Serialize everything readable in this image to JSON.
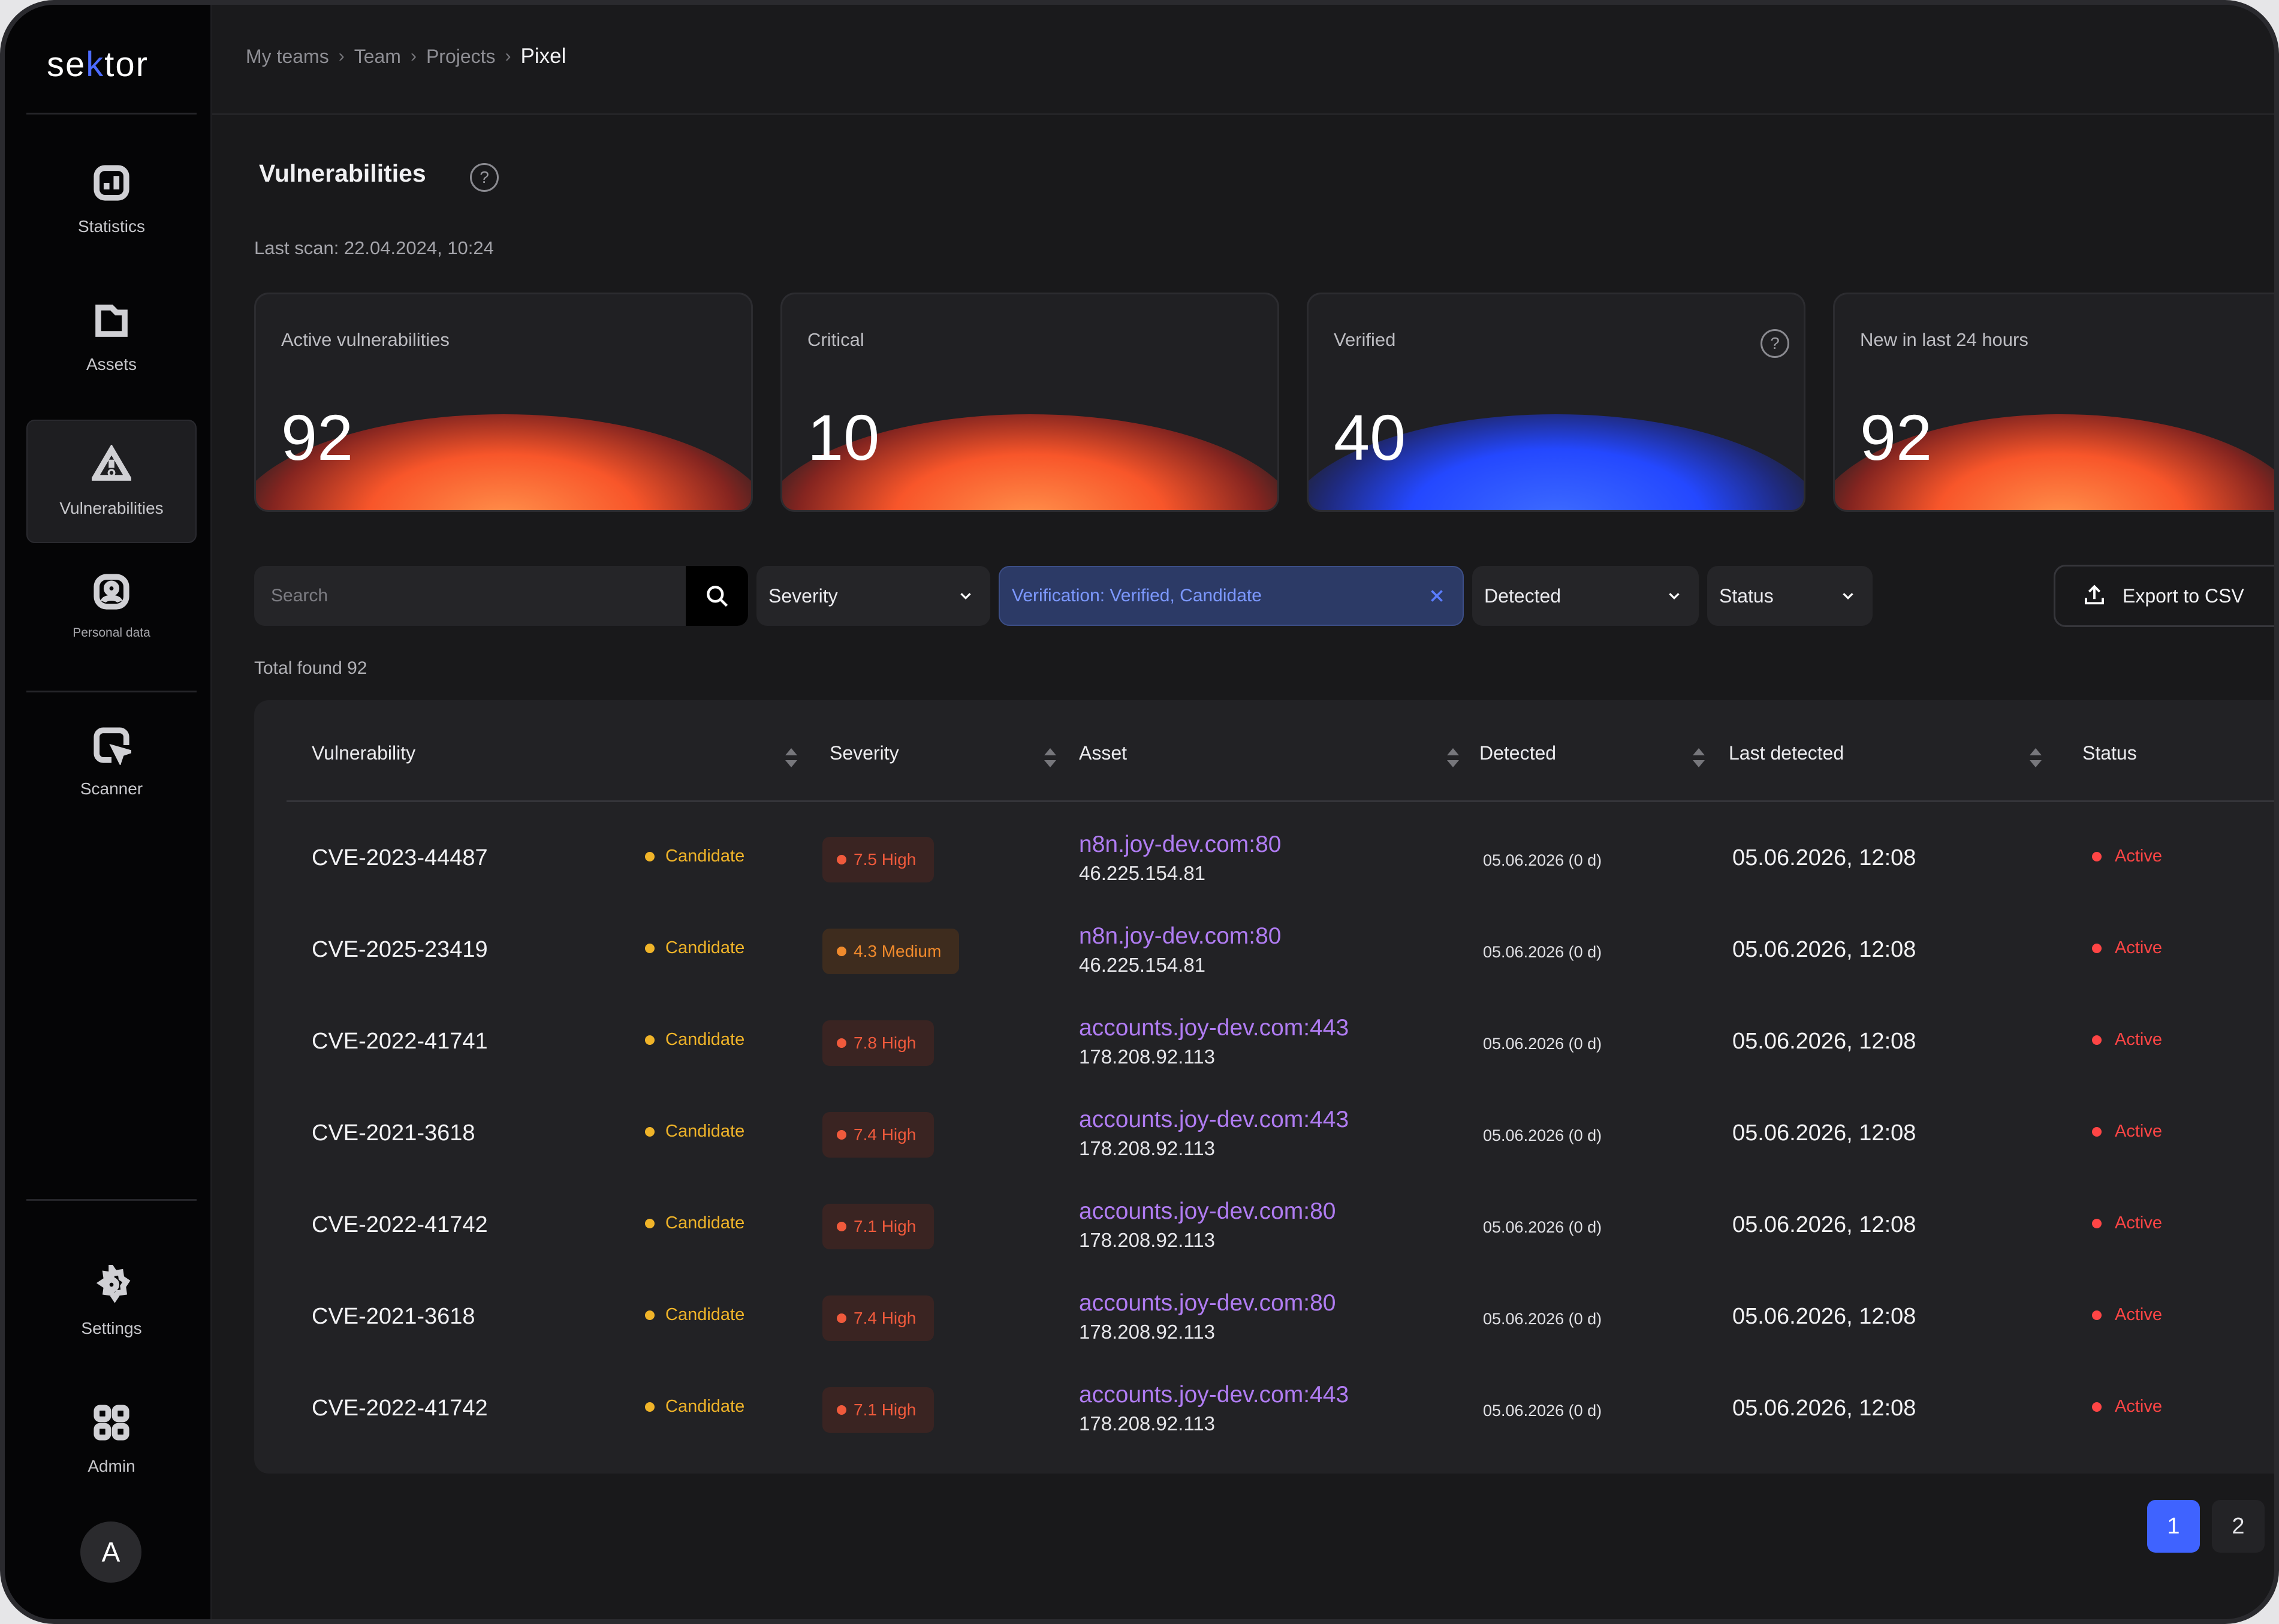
{
  "app": {
    "logo_text": "sektor"
  },
  "breadcrumbs": [
    "My teams",
    "Team",
    "Projects",
    "Pixel"
  ],
  "sidebar": {
    "items": [
      {
        "label": "Statistics",
        "icon": "bar-chart-icon"
      },
      {
        "label": "Assets",
        "icon": "folder-icon"
      },
      {
        "label": "Vulnerabilities",
        "icon": "warning-triangle-icon",
        "active": true
      },
      {
        "label": "Personal data",
        "icon": "user-badge-icon"
      },
      {
        "label": "Scanner",
        "icon": "scan-cursor-icon"
      }
    ],
    "bottom_items": [
      {
        "label": "Settings",
        "icon": "gear-icon"
      },
      {
        "label": "Admin",
        "icon": "grid-icon"
      }
    ],
    "avatar_initial": "A"
  },
  "page": {
    "title": "Vulnerabilities",
    "last_scan": "Last scan: 22.04.2024, 10:24"
  },
  "stats": [
    {
      "label": "Active vulnerabilities",
      "value": "92",
      "glow": "orange"
    },
    {
      "label": "Critical",
      "value": "10",
      "glow": "orange"
    },
    {
      "label": "Verified",
      "value": "40",
      "glow": "blue",
      "help": true
    },
    {
      "label": "New in last 24 hours",
      "value": "92",
      "glow": "orange"
    }
  ],
  "filters": {
    "search_placeholder": "Search",
    "severity": "Severity",
    "verification": "Verification: Verified, Candidate",
    "detected": "Detected",
    "status": "Status",
    "export": "Export to CSV"
  },
  "total_found": "Total found 92",
  "table": {
    "columns": [
      "Vulnerability",
      "Severity",
      "Asset",
      "Detected",
      "Last detected",
      "Status"
    ],
    "rows": [
      {
        "cve": "CVE-2023-44487",
        "verification": "Candidate",
        "severity": "7.5 High",
        "level": "high",
        "host": "n8n.joy-dev.com:80",
        "ip": "46.225.154.81",
        "detected": "05.06.2026 (0 d)",
        "last": "05.06.2026, 12:08",
        "status": "Active"
      },
      {
        "cve": "CVE-2025-23419",
        "verification": "Candidate",
        "severity": "4.3 Medium",
        "level": "medium",
        "host": "n8n.joy-dev.com:80",
        "ip": "46.225.154.81",
        "detected": "05.06.2026 (0 d)",
        "last": "05.06.2026, 12:08",
        "status": "Active"
      },
      {
        "cve": "CVE-2022-41741",
        "verification": "Candidate",
        "severity": "7.8 High",
        "level": "high",
        "host": "accounts.joy-dev.com:443",
        "ip": "178.208.92.113",
        "detected": "05.06.2026 (0 d)",
        "last": "05.06.2026, 12:08",
        "status": "Active"
      },
      {
        "cve": "CVE-2021-3618",
        "verification": "Candidate",
        "severity": "7.4 High",
        "level": "high",
        "host": "accounts.joy-dev.com:443",
        "ip": "178.208.92.113",
        "detected": "05.06.2026 (0 d)",
        "last": "05.06.2026, 12:08",
        "status": "Active"
      },
      {
        "cve": "CVE-2022-41742",
        "verification": "Candidate",
        "severity": "7.1 High",
        "level": "high",
        "host": "accounts.joy-dev.com:80",
        "ip": "178.208.92.113",
        "detected": "05.06.2026 (0 d)",
        "last": "05.06.2026, 12:08",
        "status": "Active"
      },
      {
        "cve": "CVE-2021-3618",
        "verification": "Candidate",
        "severity": "7.4 High",
        "level": "high",
        "host": "accounts.joy-dev.com:80",
        "ip": "178.208.92.113",
        "detected": "05.06.2026 (0 d)",
        "last": "05.06.2026, 12:08",
        "status": "Active"
      },
      {
        "cve": "CVE-2022-41742",
        "verification": "Candidate",
        "severity": "7.1 High",
        "level": "high",
        "host": "accounts.joy-dev.com:443",
        "ip": "178.208.92.113",
        "detected": "05.06.2026 (0 d)",
        "last": "05.06.2026, 12:08",
        "status": "Active"
      }
    ]
  },
  "pagination": {
    "pages": [
      "1",
      "2"
    ],
    "current": "1"
  },
  "colors": {
    "accent": "#3f63ff",
    "candidate": "#f0b429",
    "high": "#f05a3c",
    "medium": "#f08a2c",
    "active": "#ff4545",
    "asset_link": "#b07cf2"
  }
}
